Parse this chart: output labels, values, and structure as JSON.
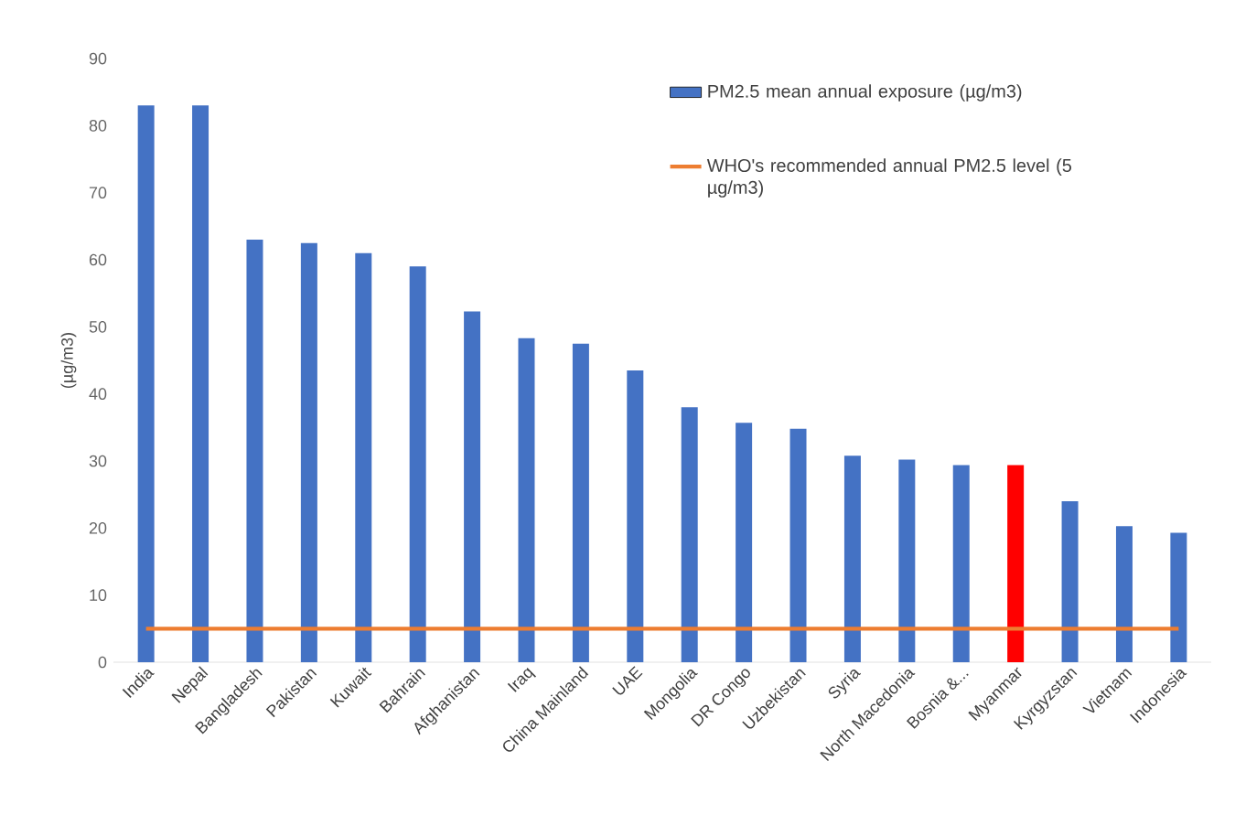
{
  "chart_data": {
    "type": "bar",
    "ylabel": "(µg/m3)",
    "categories": [
      "India",
      "Nepal",
      "Bangladesh",
      "Pakistan",
      "Kuwait",
      "Bahrain",
      "Afghanistan",
      "Iraq",
      "China Mainland",
      "UAE",
      "Mongolia",
      "DR Congo",
      "Uzbekistan",
      "Syria",
      "North Macedonia",
      "Bosnia &...",
      "Myanmar",
      "Kyrgyzstan",
      "Vietnam",
      "Indonesia"
    ],
    "series": [
      {
        "name": "PM2.5 mean annual exposure (µg/m3)",
        "colors": [
          "#4472c4",
          "#4472c4",
          "#4472c4",
          "#4472c4",
          "#4472c4",
          "#4472c4",
          "#4472c4",
          "#4472c4",
          "#4472c4",
          "#4472c4",
          "#4472c4",
          "#4472c4",
          "#4472c4",
          "#4472c4",
          "#4472c4",
          "#4472c4",
          "#ff0000",
          "#4472c4",
          "#4472c4",
          "#4472c4"
        ],
        "values": [
          83,
          83,
          63,
          62.5,
          61,
          59,
          52.3,
          48.3,
          47.5,
          43.5,
          38,
          35.7,
          34.8,
          30.8,
          30.2,
          29.4,
          29.4,
          24,
          20.3,
          19.3
        ]
      },
      {
        "name": "WHO's recommended annual PM2.5 level (5 µg/m3)",
        "type": "line",
        "color": "#ed7d31",
        "values": [
          5,
          5,
          5,
          5,
          5,
          5,
          5,
          5,
          5,
          5,
          5,
          5,
          5,
          5,
          5,
          5,
          5,
          5,
          5,
          5
        ]
      }
    ],
    "ylim": [
      0,
      90
    ],
    "yticks": [
      0,
      10,
      20,
      30,
      40,
      50,
      60,
      70,
      80,
      90
    ],
    "grid": false,
    "legend": "top right"
  }
}
